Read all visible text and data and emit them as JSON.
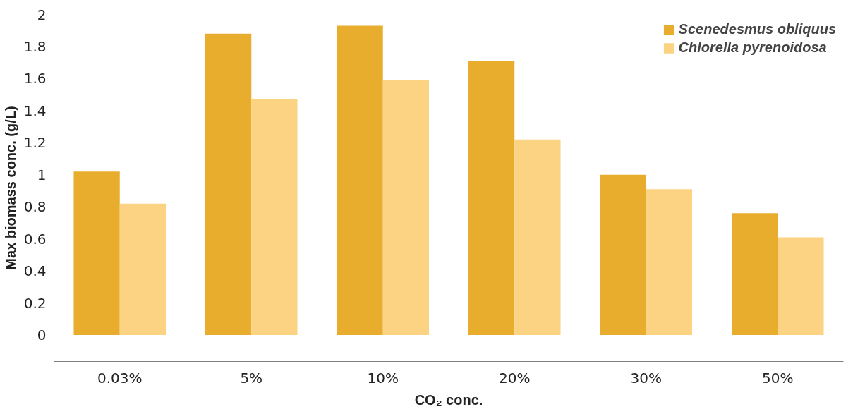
{
  "chart_data": {
    "type": "bar",
    "categories": [
      "0.03%",
      "5%",
      "10%",
      "20%",
      "30%",
      "50%"
    ],
    "series": [
      {
        "name": "Scenedesmus obliquus",
        "color": "#e8ad2c",
        "values": [
          1.02,
          1.88,
          1.93,
          1.71,
          1.0,
          0.76
        ]
      },
      {
        "name": "Chlorella pyrenoidosa",
        "color": "#fcd283",
        "values": [
          0.82,
          1.47,
          1.59,
          1.22,
          0.91,
          0.61
        ]
      }
    ],
    "xlabel": "CO₂ conc.",
    "ylabel": "Max biomass conc. (g/L)",
    "ylim": [
      -0.165,
      2
    ],
    "yticks": [
      0,
      0.2,
      0.4,
      0.6,
      0.8,
      1,
      1.2,
      1.4,
      1.6,
      1.8,
      2
    ],
    "grid": false,
    "legend": "top right"
  }
}
